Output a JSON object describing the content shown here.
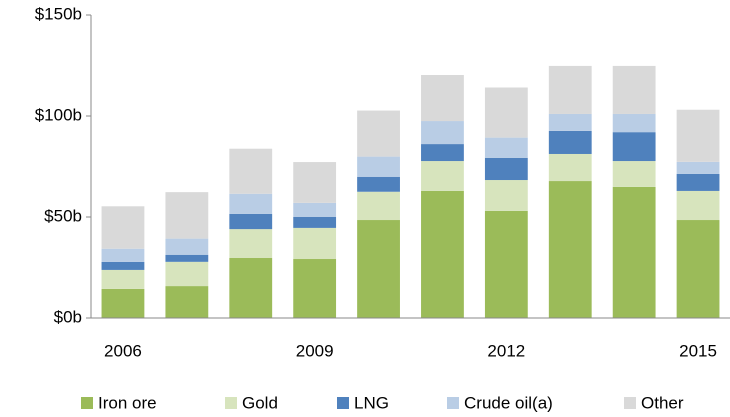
{
  "chart_data": {
    "type": "stacked_bar",
    "categories": [
      "2006",
      null,
      null,
      "2009",
      null,
      null,
      "2012",
      null,
      null,
      "2015"
    ],
    "series": [
      {
        "name": "Iron ore",
        "color": "#9bbb59",
        "values": [
          14.4,
          15.8,
          29.7,
          29.2,
          48.5,
          62.9,
          53.0,
          67.8,
          64.9,
          48.5
        ]
      },
      {
        "name": "Gold",
        "color": "#d7e4bd",
        "values": [
          9.4,
          12.0,
          14.3,
          15.4,
          14.0,
          14.8,
          15.3,
          13.4,
          12.8,
          14.4
        ]
      },
      {
        "name": "LNG",
        "color": "#4f81bd",
        "values": [
          4.0,
          3.5,
          7.5,
          5.4,
          7.4,
          8.4,
          11.0,
          11.4,
          14.3,
          8.4
        ]
      },
      {
        "name": "Crude oil(a)",
        "color": "#b9cde5",
        "values": [
          6.5,
          8.0,
          10.0,
          7.0,
          10.0,
          11.4,
          10.0,
          8.4,
          9.0,
          6.0
        ]
      },
      {
        "name": "Other",
        "color": "#d9d9d9",
        "values": [
          21.0,
          23.0,
          22.3,
          20.2,
          22.8,
          22.8,
          24.8,
          23.8,
          23.8,
          25.8
        ]
      }
    ],
    "ylim": [
      0,
      150
    ],
    "yticks": [
      {
        "value": 0,
        "label": "$0b"
      },
      {
        "value": 50,
        "label": "$50b"
      },
      {
        "value": 100,
        "label": "$100b"
      },
      {
        "value": 150,
        "label": "$150b"
      }
    ],
    "grid": false,
    "legend": "bottom"
  }
}
